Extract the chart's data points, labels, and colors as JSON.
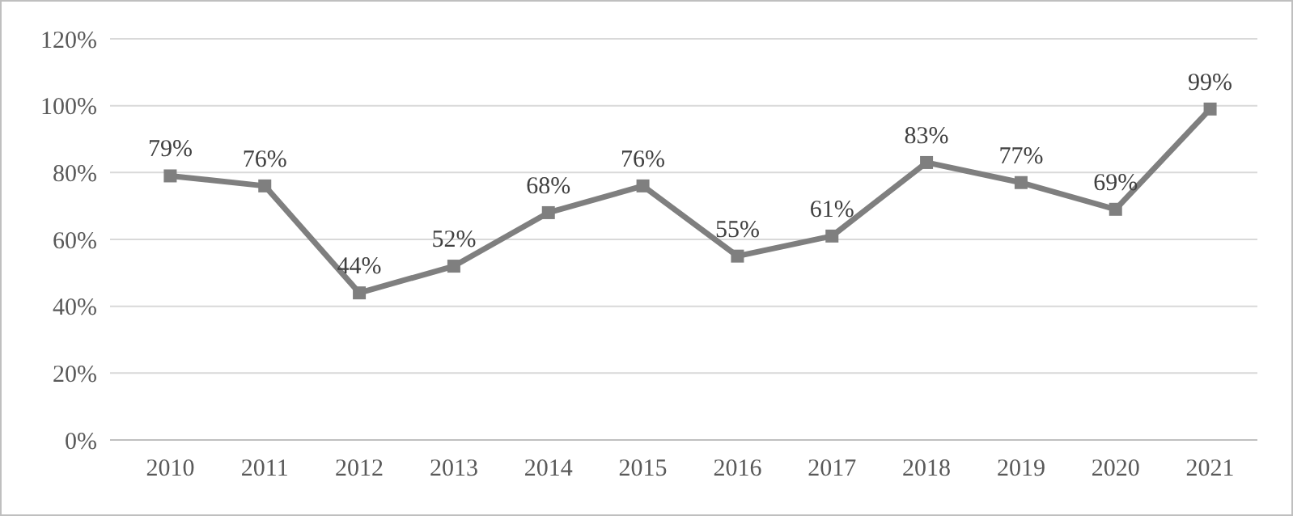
{
  "chart_data": {
    "type": "line",
    "categories": [
      "2010",
      "2011",
      "2012",
      "2013",
      "2014",
      "2015",
      "2016",
      "2017",
      "2018",
      "2019",
      "2020",
      "2021"
    ],
    "series": [
      {
        "color": "#7f7f7f",
        "values": [
          79,
          76,
          44,
          52,
          68,
          76,
          55,
          61,
          83,
          77,
          69,
          99
        ],
        "value_labels": [
          "79%",
          "76%",
          "44%",
          "52%",
          "68%",
          "76%",
          "55%",
          "61%",
          "83%",
          "77%",
          "69%",
          "99%"
        ]
      }
    ],
    "ylim": [
      0,
      120
    ],
    "yticks": [
      {
        "value": 0,
        "label": "0%"
      },
      {
        "value": 20,
        "label": "20%"
      },
      {
        "value": 40,
        "label": "40%"
      },
      {
        "value": 60,
        "label": "60%"
      },
      {
        "value": 80,
        "label": "80%"
      },
      {
        "value": 100,
        "label": "100%"
      },
      {
        "value": 120,
        "label": "120%"
      }
    ],
    "grid": "y",
    "marker": "square",
    "line_style": "solid"
  }
}
